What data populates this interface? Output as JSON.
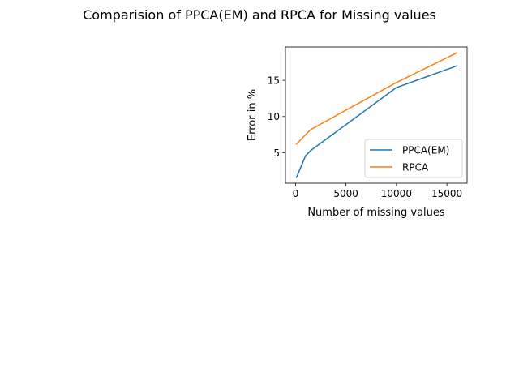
{
  "figure": {
    "title": "Comparision of PPCA(EM) and RPCA for Missing values"
  },
  "chart_data": {
    "type": "line",
    "xlabel": "Number of missing values",
    "ylabel": "Error in %",
    "xlim": [
      -1000,
      17000
    ],
    "ylim": [
      0.8,
      19.6
    ],
    "xticks": [
      0,
      5000,
      10000,
      15000
    ],
    "yticks": [
      5,
      10,
      15
    ],
    "grid": false,
    "legend_position": "lower-right",
    "series": [
      {
        "name": "PPCA(EM)",
        "color": "#1f77b4",
        "x": [
          100,
          1000,
          1500,
          10000,
          16000
        ],
        "y": [
          1.6,
          4.6,
          5.3,
          14.0,
          17.0
        ]
      },
      {
        "name": "RPCA",
        "color": "#ff7f0e",
        "x": [
          100,
          1000,
          1500,
          10000,
          16000
        ],
        "y": [
          6.2,
          7.5,
          8.2,
          14.7,
          18.8
        ]
      }
    ]
  }
}
